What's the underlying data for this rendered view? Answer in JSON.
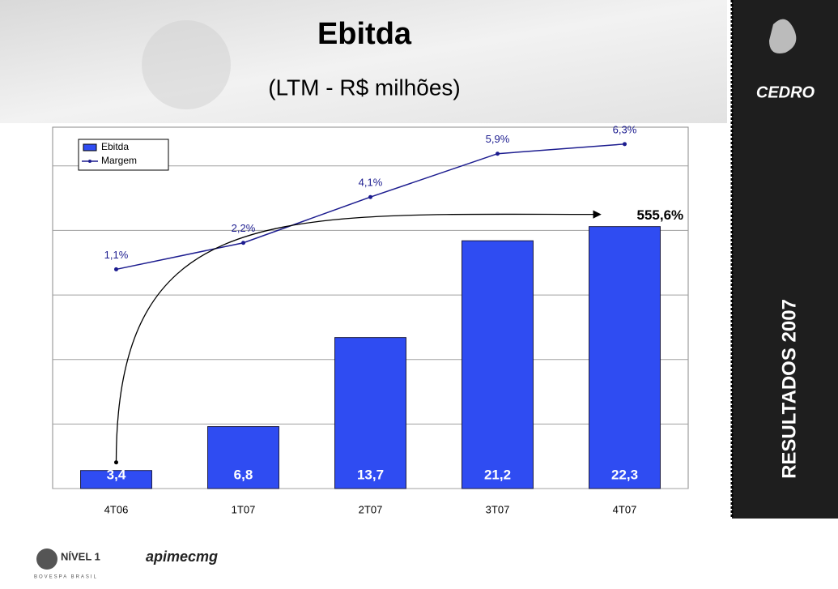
{
  "slide": {
    "sidebar": "RESULTADOS 2007",
    "logo": "CEDRO",
    "footer_left": "NÍVEL 1",
    "footer_left_sub": "BOVESPA BRASIL",
    "footer_right": "apimecmg"
  },
  "chart_data": {
    "type": "bar_line",
    "title": "Ebitda",
    "subtitle": "(LTM - R$ milhões)",
    "categories": [
      "4T06",
      "1T07",
      "2T07",
      "3T07",
      "4T07"
    ],
    "series": [
      {
        "name": "Ebitda",
        "type": "bar",
        "color": "#2f4cf2",
        "values": [
          3.4,
          6.8,
          13.7,
          21.2,
          22.3
        ],
        "value_labels": [
          "3,4",
          "6,8",
          "13,7",
          "21,2",
          "22,3"
        ]
      },
      {
        "name": "Margem",
        "type": "line",
        "axis": "y2",
        "color": "#1c1c8f",
        "values": [
          1.1,
          2.2,
          4.1,
          5.9,
          6.3
        ],
        "value_labels": [
          "1,1%",
          "2,2%",
          "4,1%",
          "5,9%",
          "6,3%"
        ]
      }
    ],
    "ylim": [
      2,
      30
    ],
    "yticks": [
      2,
      7,
      12,
      17,
      22,
      27
    ],
    "y2lim": [
      -8,
      7
    ],
    "grid": true,
    "legend": "upper left",
    "annotation": "555,6%"
  }
}
